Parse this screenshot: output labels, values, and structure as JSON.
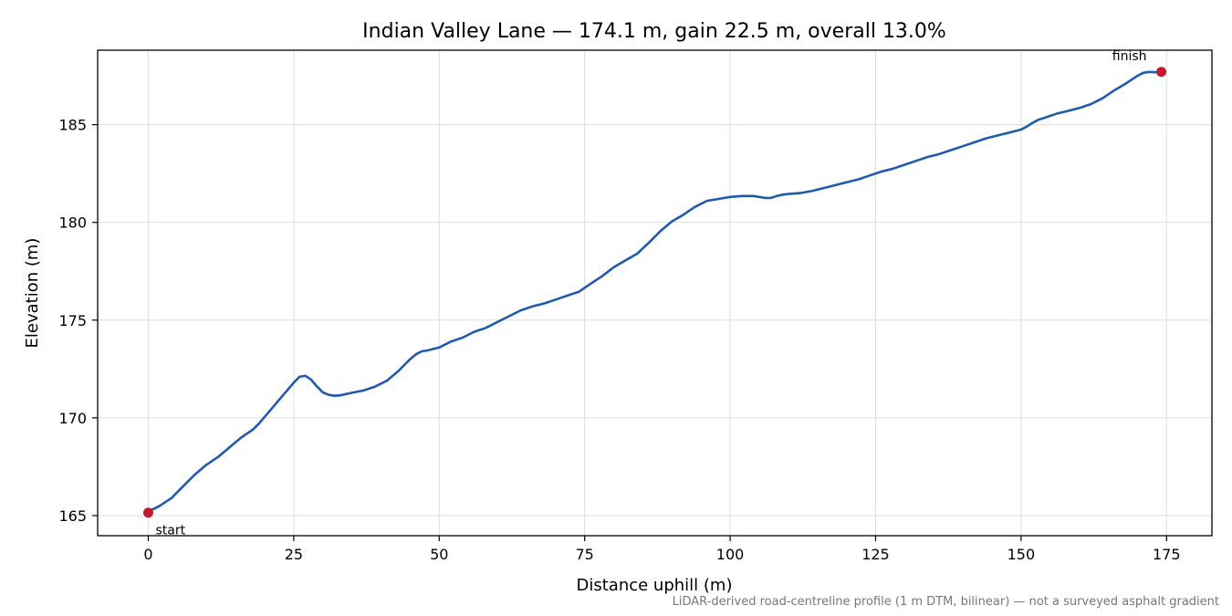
{
  "chart_data": {
    "type": "line",
    "title": "Indian Valley Lane — 174.1 m, gain 22.5 m, overall 13.0%",
    "xlabel": "Distance uphill (m)",
    "ylabel": "Elevation (m)",
    "xlim": [
      -8.7,
      182.8
    ],
    "ylim": [
      163.97,
      188.81
    ],
    "xticks": [
      0,
      25,
      50,
      75,
      100,
      125,
      150,
      175
    ],
    "yticks": [
      165,
      170,
      175,
      180,
      185
    ],
    "grid": true,
    "series": [
      {
        "color": "#1f5aab",
        "x": [
          0,
          2,
          4,
          6,
          8,
          10,
          12,
          14,
          16,
          18,
          19,
          21,
          23,
          25,
          26,
          27,
          28,
          29,
          30,
          31,
          32,
          33,
          35,
          37,
          39,
          41,
          43,
          45,
          46,
          47,
          48,
          50,
          52,
          54,
          56,
          58,
          60,
          62,
          64,
          66,
          68,
          70,
          72,
          74,
          76,
          78,
          80,
          82,
          84,
          86,
          88,
          90,
          92,
          94,
          96,
          98,
          100,
          102,
          104,
          105,
          106,
          107,
          108,
          109,
          110,
          112,
          114,
          116,
          118,
          120,
          122,
          124,
          126,
          128,
          130,
          132,
          134,
          136,
          138,
          140,
          142,
          144,
          146,
          148,
          150,
          151,
          152,
          153,
          154,
          156,
          158,
          160,
          162,
          164,
          166,
          168,
          170,
          171,
          172,
          173,
          174.1
        ],
        "y": [
          165.2,
          165.5,
          165.9,
          166.5,
          167.1,
          167.6,
          168.0,
          168.5,
          169.0,
          169.4,
          169.7,
          170.4,
          171.1,
          171.8,
          172.1,
          172.15,
          171.95,
          171.6,
          171.3,
          171.18,
          171.13,
          171.15,
          171.28,
          171.4,
          171.6,
          171.9,
          172.4,
          173.0,
          173.25,
          173.4,
          173.45,
          173.6,
          173.9,
          174.1,
          174.4,
          174.6,
          174.9,
          175.2,
          175.5,
          175.7,
          175.85,
          176.05,
          176.25,
          176.45,
          176.85,
          177.25,
          177.7,
          178.05,
          178.4,
          178.95,
          179.55,
          180.05,
          180.4,
          180.8,
          181.1,
          181.2,
          181.3,
          181.35,
          181.35,
          181.3,
          181.25,
          181.25,
          181.35,
          181.42,
          181.45,
          181.5,
          181.6,
          181.75,
          181.9,
          182.05,
          182.2,
          182.4,
          182.6,
          182.75,
          182.95,
          183.15,
          183.35,
          183.5,
          183.7,
          183.9,
          184.1,
          184.3,
          184.45,
          184.6,
          184.75,
          184.9,
          185.1,
          185.25,
          185.35,
          185.55,
          185.7,
          185.85,
          186.05,
          186.35,
          186.75,
          187.1,
          187.5,
          187.65,
          187.7,
          187.68,
          187.7
        ]
      }
    ],
    "markers": [
      {
        "x": 0,
        "y": 165.15,
        "label": "start",
        "color": "#c21a2b"
      },
      {
        "x": 174.1,
        "y": 187.7,
        "label": "finish",
        "color": "#c21a2b"
      }
    ],
    "footnote": "LiDAR-derived road-centreline profile (1 m DTM, bilinear) — not a surveyed asphalt gradient"
  }
}
